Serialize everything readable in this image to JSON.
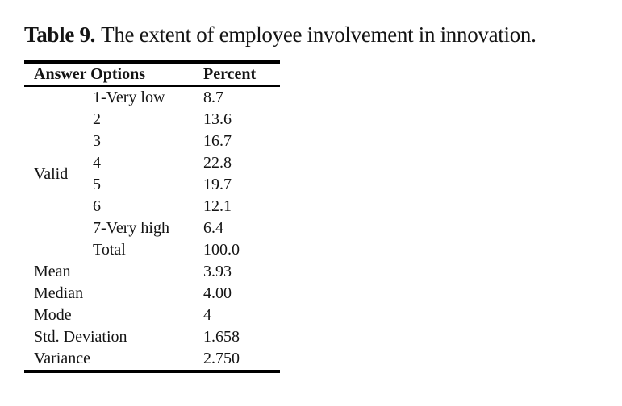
{
  "title": {
    "label": "Table 9.",
    "text": "The extent of employee involvement in innovation."
  },
  "table": {
    "columns": [
      "Answer Options",
      "Percent"
    ],
    "group_label": "Valid",
    "options": [
      {
        "option": "1-Very low",
        "percent": "8.7"
      },
      {
        "option": "2",
        "percent": "13.6"
      },
      {
        "option": "3",
        "percent": "16.7"
      },
      {
        "option": "4",
        "percent": "22.8"
      },
      {
        "option": "5",
        "percent": "19.7"
      },
      {
        "option": "6",
        "percent": "12.1"
      },
      {
        "option": "7-Very high",
        "percent": "6.4"
      },
      {
        "option": "Total",
        "percent": "100.0"
      }
    ],
    "statistics": [
      {
        "label": "Mean",
        "value": "3.93"
      },
      {
        "label": "Median",
        "value": "4.00"
      },
      {
        "label": "Mode",
        "value": "4"
      },
      {
        "label": "Std. Deviation",
        "value": "1.658"
      },
      {
        "label": "Variance",
        "value": "2.750"
      }
    ]
  },
  "colors": {
    "background": "#ffffff",
    "text": "#141414",
    "rule": "#000000"
  }
}
